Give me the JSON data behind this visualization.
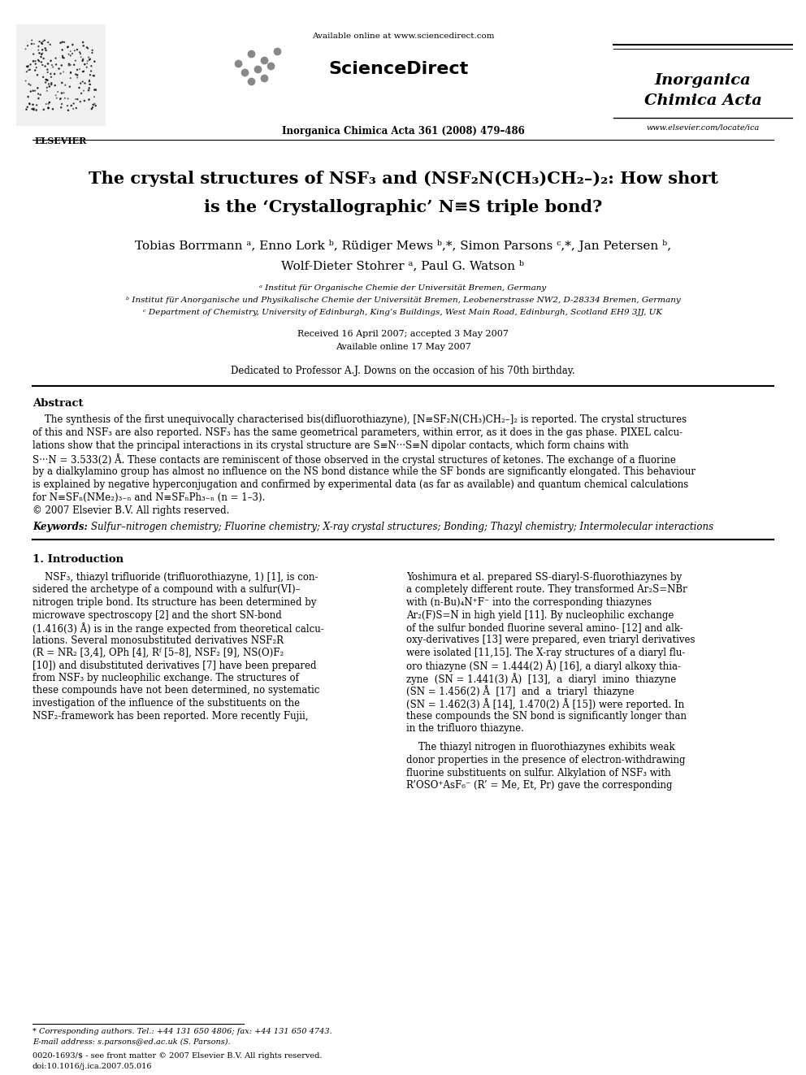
{
  "bg_color": "#ffffff",
  "page_width": 9.92,
  "page_height": 13.23,
  "dpi": 100,
  "title_line1": "The crystal structures of NSF₃ and (NSF₂N(CH₃)CH₂–)₂: How short",
  "title_line2": "is the ‘Crystallographic’ N≡S triple bond?",
  "authors": "Tobias Borrmann ᵃ, Enno Lork ᵇ, Rüdiger Mews ᵇ,*, Simon Parsons ᶜ,*, Jan Petersen ᵇ,",
  "authors2": "Wolf-Dieter Stohrer ᵃ, Paul G. Watson ᵇ",
  "affil_a": "ᵃ Institut für Organische Chemie der Universität Bremen, Germany",
  "affil_b": "ᵇ Institut für Anorganische und Physikalische Chemie der Universität Bremen, Leobenerstrasse NW2, D-28334 Bremen, Germany",
  "affil_c": "ᶜ Department of Chemistry, University of Edinburgh, King’s Buildings, West Main Road, Edinburgh, Scotland EH9 3JJ, UK",
  "received": "Received 16 April 2007; accepted 3 May 2007",
  "available": "Available online 17 May 2007",
  "dedicated": "Dedicated to Professor A.J. Downs on the occasion of his 70th birthday.",
  "header_center": "Available online at www.sciencedirect.com",
  "sciencedirect": "ScienceDirect",
  "journal_ref": "Inorganica Chimica Acta 361 (2008) 479–486",
  "journal_name_line1": "Inorganica",
  "journal_name_line2": "Chimica Acta",
  "journal_url": "www.elsevier.com/locate/ica",
  "abstract_title": "Abstract",
  "copyright": "© 2007 Elsevier B.V. All rights reserved.",
  "keywords_label": "Keywords:",
  "keywords_text": "Sulfur–nitrogen chemistry; Fluorine chemistry; X-ray crystal structures; Bonding; Thazyl chemistry; Intermolecular interactions",
  "section1_title": "1. Introduction",
  "footnote_star": "* Corresponding authors. Tel.: +44 131 650 4806; fax: +44 131 650 4743.",
  "footnote_email": "E-mail address: s.parsons@ed.ac.uk (S. Parsons).",
  "footer_line1": "0020-1693/$ - see front matter © 2007 Elsevier B.V. All rights reserved.",
  "footer_line2": "doi:10.1016/j.ica.2007.05.016"
}
